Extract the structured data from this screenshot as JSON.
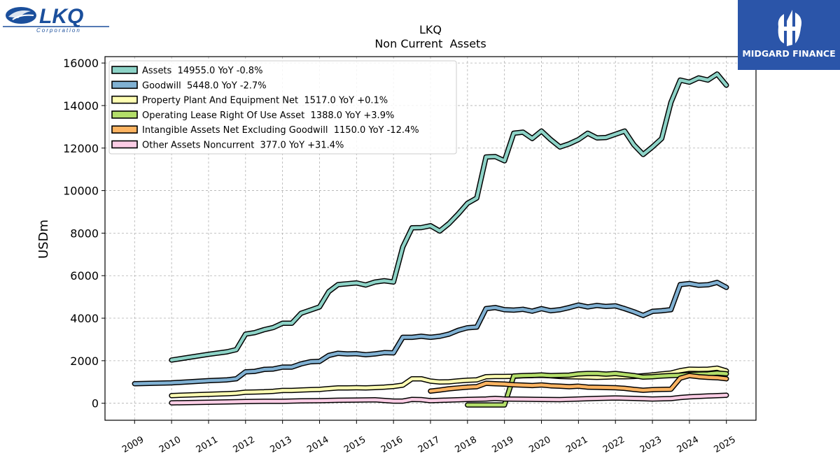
{
  "logos": {
    "left": {
      "text": "LKQ",
      "subtext": "Corporation",
      "color": "#1b4f9c"
    },
    "right": {
      "text": "MIDGARD FINANCE",
      "background": "#2b55a9"
    }
  },
  "chart_data": {
    "type": "line",
    "title": "LKQ",
    "subtitle": "Non Current  Assets",
    "ylabel": "USDm",
    "xlabel": "",
    "ylim": [
      -800,
      16300
    ],
    "xlim": [
      2008.2,
      2025.8
    ],
    "yticks": [
      0,
      2000,
      4000,
      6000,
      8000,
      10000,
      12000,
      14000,
      16000
    ],
    "xticks": [
      "2009",
      "2010",
      "2011",
      "2012",
      "2013",
      "2014",
      "2015",
      "2016",
      "2017",
      "2018",
      "2019",
      "2020",
      "2021",
      "2022",
      "2023",
      "2024",
      "2025"
    ],
    "grid": true,
    "legend_position": "top-left",
    "series": [
      {
        "name": "Assets",
        "legend": "Assets  14955.0 YoY -0.8%",
        "color": "#8dd3c7",
        "points": [
          [
            2010.0,
            2030
          ],
          [
            2011.0,
            2300
          ],
          [
            2011.5,
            2420
          ],
          [
            2011.75,
            2520
          ],
          [
            2012.0,
            3250
          ],
          [
            2012.25,
            3320
          ],
          [
            2012.5,
            3460
          ],
          [
            2012.75,
            3560
          ],
          [
            2013.0,
            3760
          ],
          [
            2013.25,
            3760
          ],
          [
            2013.5,
            4230
          ],
          [
            2013.75,
            4380
          ],
          [
            2014.0,
            4530
          ],
          [
            2014.25,
            5250
          ],
          [
            2014.5,
            5580
          ],
          [
            2014.75,
            5620
          ],
          [
            2015.0,
            5660
          ],
          [
            2015.25,
            5560
          ],
          [
            2015.5,
            5700
          ],
          [
            2015.75,
            5760
          ],
          [
            2016.0,
            5700
          ],
          [
            2016.25,
            7350
          ],
          [
            2016.5,
            8250
          ],
          [
            2016.75,
            8260
          ],
          [
            2017.0,
            8350
          ],
          [
            2017.25,
            8100
          ],
          [
            2017.5,
            8450
          ],
          [
            2017.75,
            8900
          ],
          [
            2018.0,
            9400
          ],
          [
            2018.25,
            9650
          ],
          [
            2018.5,
            11580
          ],
          [
            2018.75,
            11600
          ],
          [
            2019.0,
            11400
          ],
          [
            2019.25,
            12700
          ],
          [
            2019.5,
            12750
          ],
          [
            2019.75,
            12450
          ],
          [
            2020.0,
            12800
          ],
          [
            2020.25,
            12400
          ],
          [
            2020.5,
            12050
          ],
          [
            2020.75,
            12200
          ],
          [
            2021.0,
            12400
          ],
          [
            2021.25,
            12700
          ],
          [
            2021.5,
            12480
          ],
          [
            2021.75,
            12500
          ],
          [
            2022.0,
            12650
          ],
          [
            2022.25,
            12800
          ],
          [
            2022.5,
            12150
          ],
          [
            2022.75,
            11700
          ],
          [
            2023.0,
            12050
          ],
          [
            2023.25,
            12450
          ],
          [
            2023.5,
            14150
          ],
          [
            2023.75,
            15200
          ],
          [
            2024.0,
            15100
          ],
          [
            2024.25,
            15300
          ],
          [
            2024.5,
            15200
          ],
          [
            2024.75,
            15480
          ],
          [
            2025.0,
            14955
          ]
        ]
      },
      {
        "name": "Goodwill",
        "legend": "Goodwill  5448.0 YoY -2.7%",
        "color": "#80b1d3",
        "points": [
          [
            2009.0,
            920
          ],
          [
            2010.0,
            960
          ],
          [
            2011.0,
            1060
          ],
          [
            2011.5,
            1100
          ],
          [
            2011.75,
            1150
          ],
          [
            2012.0,
            1480
          ],
          [
            2012.25,
            1500
          ],
          [
            2012.5,
            1590
          ],
          [
            2012.75,
            1610
          ],
          [
            2013.0,
            1700
          ],
          [
            2013.25,
            1700
          ],
          [
            2013.5,
            1850
          ],
          [
            2013.75,
            1950
          ],
          [
            2014.0,
            1970
          ],
          [
            2014.25,
            2250
          ],
          [
            2014.5,
            2350
          ],
          [
            2014.75,
            2320
          ],
          [
            2015.0,
            2330
          ],
          [
            2015.25,
            2280
          ],
          [
            2015.5,
            2320
          ],
          [
            2015.75,
            2380
          ],
          [
            2016.0,
            2370
          ],
          [
            2016.25,
            3100
          ],
          [
            2016.5,
            3100
          ],
          [
            2016.75,
            3150
          ],
          [
            2017.0,
            3100
          ],
          [
            2017.25,
            3150
          ],
          [
            2017.5,
            3250
          ],
          [
            2017.75,
            3430
          ],
          [
            2018.0,
            3550
          ],
          [
            2018.25,
            3580
          ],
          [
            2018.5,
            4450
          ],
          [
            2018.75,
            4500
          ],
          [
            2019.0,
            4400
          ],
          [
            2019.25,
            4380
          ],
          [
            2019.5,
            4420
          ],
          [
            2019.75,
            4330
          ],
          [
            2020.0,
            4450
          ],
          [
            2020.25,
            4350
          ],
          [
            2020.5,
            4400
          ],
          [
            2020.75,
            4500
          ],
          [
            2021.0,
            4620
          ],
          [
            2021.25,
            4530
          ],
          [
            2021.5,
            4600
          ],
          [
            2021.75,
            4550
          ],
          [
            2022.0,
            4580
          ],
          [
            2022.25,
            4450
          ],
          [
            2022.5,
            4300
          ],
          [
            2022.75,
            4130
          ],
          [
            2023.0,
            4320
          ],
          [
            2023.25,
            4350
          ],
          [
            2023.5,
            4400
          ],
          [
            2023.75,
            5580
          ],
          [
            2024.0,
            5630
          ],
          [
            2024.25,
            5550
          ],
          [
            2024.5,
            5570
          ],
          [
            2024.75,
            5680
          ],
          [
            2025.0,
            5448
          ]
        ]
      },
      {
        "name": "Property Plant And Equipment Net",
        "legend": "Property Plant And Equipment Net  1517.0 YoY +0.1%",
        "color": "#ffffb3",
        "points": [
          [
            2010.0,
            360
          ],
          [
            2011.0,
            420
          ],
          [
            2011.5,
            450
          ],
          [
            2011.75,
            470
          ],
          [
            2012.0,
            520
          ],
          [
            2012.25,
            530
          ],
          [
            2012.5,
            540
          ],
          [
            2012.75,
            560
          ],
          [
            2013.0,
            600
          ],
          [
            2013.25,
            600
          ],
          [
            2013.5,
            620
          ],
          [
            2013.75,
            640
          ],
          [
            2014.0,
            650
          ],
          [
            2014.25,
            690
          ],
          [
            2014.5,
            720
          ],
          [
            2014.75,
            720
          ],
          [
            2015.0,
            730
          ],
          [
            2015.25,
            720
          ],
          [
            2015.5,
            740
          ],
          [
            2015.75,
            760
          ],
          [
            2016.0,
            790
          ],
          [
            2016.25,
            850
          ],
          [
            2016.5,
            1150
          ],
          [
            2016.75,
            1150
          ],
          [
            2017.0,
            1040
          ],
          [
            2017.25,
            1000
          ],
          [
            2017.5,
            1010
          ],
          [
            2017.75,
            1050
          ],
          [
            2018.0,
            1080
          ],
          [
            2018.25,
            1100
          ],
          [
            2018.5,
            1250
          ],
          [
            2018.75,
            1260
          ],
          [
            2019.0,
            1260
          ],
          [
            2019.25,
            1270
          ],
          [
            2019.5,
            1290
          ],
          [
            2019.75,
            1300
          ],
          [
            2020.0,
            1310
          ],
          [
            2020.25,
            1290
          ],
          [
            2020.5,
            1260
          ],
          [
            2020.75,
            1250
          ],
          [
            2021.0,
            1240
          ],
          [
            2021.25,
            1230
          ],
          [
            2021.5,
            1220
          ],
          [
            2021.75,
            1230
          ],
          [
            2022.0,
            1250
          ],
          [
            2022.25,
            1250
          ],
          [
            2022.5,
            1260
          ],
          [
            2022.75,
            1290
          ],
          [
            2023.0,
            1330
          ],
          [
            2023.25,
            1380
          ],
          [
            2023.5,
            1420
          ],
          [
            2023.75,
            1530
          ],
          [
            2024.0,
            1600
          ],
          [
            2024.25,
            1590
          ],
          [
            2024.5,
            1600
          ],
          [
            2024.75,
            1650
          ],
          [
            2025.0,
            1517
          ]
        ]
      },
      {
        "name": "Operating Lease Right Of Use Asset",
        "legend": "Operating Lease Right Of Use Asset  1388.0 YoY +3.9%",
        "color": "#b3de69",
        "points": [
          [
            2018.0,
            -80
          ],
          [
            2018.25,
            -80
          ],
          [
            2018.5,
            -80
          ],
          [
            2018.75,
            -80
          ],
          [
            2019.0,
            -80
          ],
          [
            2019.25,
            1280
          ],
          [
            2019.5,
            1300
          ],
          [
            2019.75,
            1310
          ],
          [
            2020.0,
            1330
          ],
          [
            2020.25,
            1300
          ],
          [
            2020.5,
            1310
          ],
          [
            2020.75,
            1320
          ],
          [
            2021.0,
            1380
          ],
          [
            2021.25,
            1400
          ],
          [
            2021.5,
            1400
          ],
          [
            2021.75,
            1370
          ],
          [
            2022.0,
            1400
          ],
          [
            2022.25,
            1350
          ],
          [
            2022.5,
            1300
          ],
          [
            2022.75,
            1230
          ],
          [
            2023.0,
            1250
          ],
          [
            2023.25,
            1280
          ],
          [
            2023.5,
            1300
          ],
          [
            2023.75,
            1320
          ],
          [
            2024.0,
            1350
          ],
          [
            2024.25,
            1370
          ],
          [
            2024.5,
            1380
          ],
          [
            2024.75,
            1420
          ],
          [
            2025.0,
            1388
          ]
        ]
      },
      {
        "name": "Intangible Assets Net Excluding Goodwill",
        "legend": "Intangible Assets Net Excluding Goodwill  1150.0 YoY -12.4%",
        "color": "#fdb462",
        "points": [
          [
            2017.0,
            570
          ],
          [
            2017.25,
            620
          ],
          [
            2017.5,
            680
          ],
          [
            2017.75,
            720
          ],
          [
            2018.0,
            760
          ],
          [
            2018.25,
            780
          ],
          [
            2018.5,
            940
          ],
          [
            2018.75,
            920
          ],
          [
            2019.0,
            900
          ],
          [
            2019.25,
            870
          ],
          [
            2019.5,
            850
          ],
          [
            2019.75,
            830
          ],
          [
            2020.0,
            860
          ],
          [
            2020.25,
            820
          ],
          [
            2020.5,
            800
          ],
          [
            2020.75,
            780
          ],
          [
            2021.0,
            800
          ],
          [
            2021.25,
            760
          ],
          [
            2021.5,
            750
          ],
          [
            2021.75,
            740
          ],
          [
            2022.0,
            730
          ],
          [
            2022.25,
            700
          ],
          [
            2022.5,
            650
          ],
          [
            2022.75,
            610
          ],
          [
            2023.0,
            640
          ],
          [
            2023.25,
            650
          ],
          [
            2023.5,
            660
          ],
          [
            2023.75,
            1180
          ],
          [
            2024.0,
            1300
          ],
          [
            2024.25,
            1250
          ],
          [
            2024.5,
            1220
          ],
          [
            2024.75,
            1200
          ],
          [
            2025.0,
            1150
          ]
        ]
      },
      {
        "name": "Other Assets Noncurrent",
        "legend": "Other Assets Noncurrent  377.0 YoY +31.4%",
        "color": "#fccde5",
        "points": [
          [
            2010.0,
            20
          ],
          [
            2011.0,
            50
          ],
          [
            2012.0,
            80
          ],
          [
            2012.5,
            90
          ],
          [
            2013.0,
            90
          ],
          [
            2013.5,
            110
          ],
          [
            2014.0,
            120
          ],
          [
            2014.5,
            140
          ],
          [
            2015.0,
            150
          ],
          [
            2015.5,
            160
          ],
          [
            2016.0,
            100
          ],
          [
            2016.25,
            100
          ],
          [
            2016.5,
            180
          ],
          [
            2016.75,
            170
          ],
          [
            2017.0,
            120
          ],
          [
            2017.5,
            150
          ],
          [
            2018.0,
            180
          ],
          [
            2018.5,
            200
          ],
          [
            2018.75,
            230
          ],
          [
            2019.0,
            200
          ],
          [
            2019.5,
            190
          ],
          [
            2020.0,
            180
          ],
          [
            2020.5,
            170
          ],
          [
            2021.0,
            200
          ],
          [
            2021.5,
            230
          ],
          [
            2022.0,
            250
          ],
          [
            2022.5,
            230
          ],
          [
            2023.0,
            200
          ],
          [
            2023.5,
            220
          ],
          [
            2023.75,
            270
          ],
          [
            2024.0,
            300
          ],
          [
            2024.5,
            340
          ],
          [
            2025.0,
            377
          ]
        ]
      }
    ]
  }
}
